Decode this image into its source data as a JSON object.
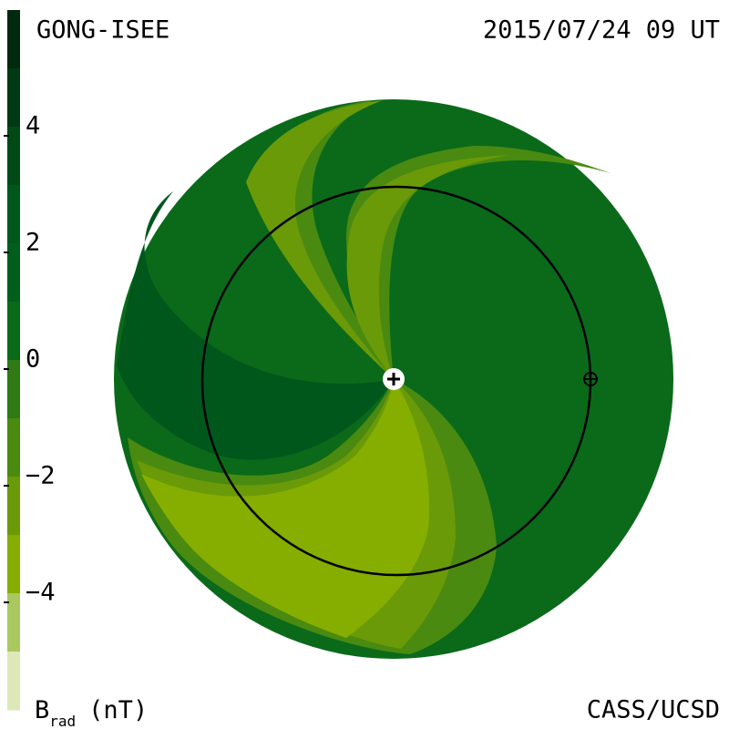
{
  "header": {
    "source": "GONG-ISEE",
    "timestamp": "2015/07/24 09 UT"
  },
  "footer": {
    "credit": "CASS/UCSD"
  },
  "colorbar": {
    "label": "B",
    "label_sub": "rad",
    "unit": "(nT)",
    "lim": [
      -6,
      6
    ],
    "ticks": [
      4,
      2,
      0,
      {
        "value": -2,
        "label": "−2"
      },
      {
        "value": -4,
        "label": "−4"
      }
    ],
    "colors": [
      "#002a10",
      "#003a14",
      "#004a18",
      "#00571c",
      "#005f1c",
      "#0a6a1a",
      "#2f7a14",
      "#4a8a10",
      "#6a9a08",
      "#85ae00",
      "#a9c860",
      "#dce8b8"
    ]
  }
}
